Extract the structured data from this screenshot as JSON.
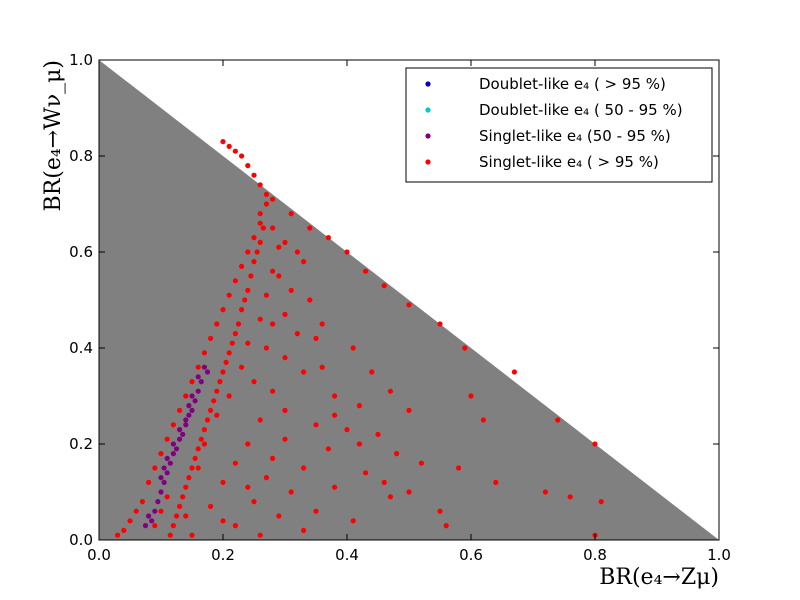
{
  "chart_data": {
    "type": "scatter",
    "xlabel": "BR(e₄→Zμ)",
    "ylabel": "BR(e₄→Wν_μ)",
    "xlim": [
      0.0,
      1.0
    ],
    "ylim": [
      0.0,
      1.0
    ],
    "x_ticks": [
      "0.0",
      "0.2",
      "0.4",
      "0.6",
      "0.8",
      "1.0"
    ],
    "y_ticks": [
      "0.0",
      "0.2",
      "0.4",
      "0.6",
      "0.8",
      "1.0"
    ],
    "grid": false,
    "legend_position": "top-right",
    "background_region": {
      "color": "#808080",
      "polygon": [
        [
          0.0,
          1.0
        ],
        [
          1.0,
          0.0
        ],
        [
          0.0,
          0.0
        ]
      ]
    },
    "series": [
      {
        "name": "Doublet-like e₄ (> 95 %)",
        "legend_name": "Doublet-like e₄ ( > 95 %)",
        "color": "#0000cc",
        "points": []
      },
      {
        "name": "Doublet-like e₄ ( 50 - 95 %)",
        "legend_name": "Doublet-like e₄ ( 50 - 95 %)",
        "color": "#00cccc",
        "points": []
      },
      {
        "name": "Singlet-like e₄ (50 - 95 %)",
        "legend_name": "Singlet-like e₄ (50 - 95 %)",
        "color": "#800080",
        "points": [
          [
            0.17,
            0.36
          ],
          [
            0.165,
            0.33
          ],
          [
            0.16,
            0.31
          ],
          [
            0.155,
            0.29
          ],
          [
            0.15,
            0.27
          ],
          [
            0.145,
            0.26
          ],
          [
            0.14,
            0.24
          ],
          [
            0.135,
            0.22
          ],
          [
            0.13,
            0.21
          ],
          [
            0.125,
            0.19
          ],
          [
            0.12,
            0.18
          ],
          [
            0.115,
            0.16
          ],
          [
            0.11,
            0.14
          ],
          [
            0.105,
            0.12
          ],
          [
            0.1,
            0.1
          ],
          [
            0.095,
            0.08
          ],
          [
            0.09,
            0.06
          ],
          [
            0.085,
            0.04
          ],
          [
            0.16,
            0.34
          ],
          [
            0.175,
            0.35
          ],
          [
            0.15,
            0.3
          ],
          [
            0.14,
            0.25
          ],
          [
            0.12,
            0.2
          ],
          [
            0.11,
            0.17
          ],
          [
            0.1,
            0.13
          ],
          [
            0.08,
            0.05
          ],
          [
            0.075,
            0.03
          ],
          [
            0.13,
            0.23
          ],
          [
            0.145,
            0.28
          ],
          [
            0.105,
            0.15
          ]
        ]
      },
      {
        "name": "Singlet-like e₄ (> 95 %)",
        "legend_name": "Singlet-like e₄ ( > 95 %)",
        "color": "#ff0000",
        "points": [
          [
            0.2,
            0.83
          ],
          [
            0.21,
            0.82
          ],
          [
            0.22,
            0.81
          ],
          [
            0.23,
            0.8
          ],
          [
            0.24,
            0.78
          ],
          [
            0.25,
            0.76
          ],
          [
            0.26,
            0.74
          ],
          [
            0.27,
            0.72
          ],
          [
            0.28,
            0.71
          ],
          [
            0.27,
            0.7
          ],
          [
            0.26,
            0.68
          ],
          [
            0.265,
            0.65
          ],
          [
            0.26,
            0.62
          ],
          [
            0.255,
            0.6
          ],
          [
            0.25,
            0.58
          ],
          [
            0.245,
            0.55
          ],
          [
            0.24,
            0.52
          ],
          [
            0.235,
            0.5
          ],
          [
            0.23,
            0.48
          ],
          [
            0.225,
            0.45
          ],
          [
            0.22,
            0.43
          ],
          [
            0.215,
            0.41
          ],
          [
            0.21,
            0.39
          ],
          [
            0.205,
            0.37
          ],
          [
            0.2,
            0.35
          ],
          [
            0.195,
            0.33
          ],
          [
            0.19,
            0.31
          ],
          [
            0.185,
            0.29
          ],
          [
            0.18,
            0.27
          ],
          [
            0.175,
            0.25
          ],
          [
            0.17,
            0.23
          ],
          [
            0.165,
            0.21
          ],
          [
            0.16,
            0.19
          ],
          [
            0.155,
            0.17
          ],
          [
            0.15,
            0.15
          ],
          [
            0.145,
            0.13
          ],
          [
            0.14,
            0.11
          ],
          [
            0.135,
            0.09
          ],
          [
            0.13,
            0.07
          ],
          [
            0.125,
            0.05
          ],
          [
            0.12,
            0.03
          ],
          [
            0.115,
            0.01
          ],
          [
            0.28,
            0.65
          ],
          [
            0.3,
            0.62
          ],
          [
            0.32,
            0.6
          ],
          [
            0.33,
            0.58
          ],
          [
            0.29,
            0.55
          ],
          [
            0.31,
            0.52
          ],
          [
            0.34,
            0.5
          ],
          [
            0.3,
            0.47
          ],
          [
            0.28,
            0.45
          ],
          [
            0.32,
            0.43
          ],
          [
            0.35,
            0.42
          ],
          [
            0.27,
            0.4
          ],
          [
            0.3,
            0.38
          ],
          [
            0.36,
            0.36
          ],
          [
            0.33,
            0.35
          ],
          [
            0.25,
            0.33
          ],
          [
            0.28,
            0.31
          ],
          [
            0.38,
            0.3
          ],
          [
            0.42,
            0.28
          ],
          [
            0.3,
            0.27
          ],
          [
            0.26,
            0.25
          ],
          [
            0.35,
            0.24
          ],
          [
            0.4,
            0.23
          ],
          [
            0.45,
            0.22
          ],
          [
            0.3,
            0.21
          ],
          [
            0.24,
            0.2
          ],
          [
            0.37,
            0.19
          ],
          [
            0.48,
            0.18
          ],
          [
            0.28,
            0.17
          ],
          [
            0.22,
            0.16
          ],
          [
            0.33,
            0.15
          ],
          [
            0.52,
            0.16
          ],
          [
            0.43,
            0.14
          ],
          [
            0.27,
            0.13
          ],
          [
            0.2,
            0.12
          ],
          [
            0.38,
            0.11
          ],
          [
            0.31,
            0.1
          ],
          [
            0.47,
            0.09
          ],
          [
            0.25,
            0.08
          ],
          [
            0.18,
            0.07
          ],
          [
            0.35,
            0.06
          ],
          [
            0.55,
            0.06
          ],
          [
            0.29,
            0.05
          ],
          [
            0.41,
            0.04
          ],
          [
            0.22,
            0.03
          ],
          [
            0.33,
            0.02
          ],
          [
            0.15,
            0.01
          ],
          [
            0.26,
            0.01
          ],
          [
            0.74,
            0.25
          ],
          [
            0.8,
            0.2
          ],
          [
            0.72,
            0.1
          ],
          [
            0.76,
            0.09
          ],
          [
            0.81,
            0.08
          ],
          [
            0.8,
            0.01
          ],
          [
            0.67,
            0.35
          ],
          [
            0.59,
            0.4
          ],
          [
            0.55,
            0.45
          ],
          [
            0.5,
            0.49
          ],
          [
            0.46,
            0.53
          ],
          [
            0.43,
            0.56
          ],
          [
            0.4,
            0.6
          ],
          [
            0.37,
            0.63
          ],
          [
            0.34,
            0.65
          ],
          [
            0.31,
            0.68
          ],
          [
            0.6,
            0.3
          ],
          [
            0.62,
            0.25
          ],
          [
            0.47,
            0.31
          ],
          [
            0.5,
            0.27
          ],
          [
            0.44,
            0.35
          ],
          [
            0.41,
            0.4
          ],
          [
            0.36,
            0.45
          ],
          [
            0.38,
            0.26
          ],
          [
            0.42,
            0.2
          ],
          [
            0.46,
            0.12
          ],
          [
            0.5,
            0.1
          ],
          [
            0.58,
            0.15
          ],
          [
            0.64,
            0.12
          ],
          [
            0.56,
            0.03
          ],
          [
            0.07,
            0.08
          ],
          [
            0.08,
            0.12
          ],
          [
            0.09,
            0.15
          ],
          [
            0.1,
            0.18
          ],
          [
            0.11,
            0.21
          ],
          [
            0.12,
            0.24
          ],
          [
            0.13,
            0.27
          ],
          [
            0.14,
            0.3
          ],
          [
            0.15,
            0.33
          ],
          [
            0.16,
            0.36
          ],
          [
            0.17,
            0.39
          ],
          [
            0.18,
            0.42
          ],
          [
            0.19,
            0.45
          ],
          [
            0.2,
            0.48
          ],
          [
            0.21,
            0.51
          ],
          [
            0.22,
            0.54
          ],
          [
            0.23,
            0.57
          ],
          [
            0.24,
            0.6
          ],
          [
            0.25,
            0.63
          ],
          [
            0.26,
            0.66
          ],
          [
            0.05,
            0.04
          ],
          [
            0.06,
            0.06
          ],
          [
            0.04,
            0.02
          ],
          [
            0.03,
            0.01
          ],
          [
            0.09,
            0.03
          ],
          [
            0.1,
            0.06
          ],
          [
            0.11,
            0.09
          ],
          [
            0.21,
            0.3
          ],
          [
            0.23,
            0.36
          ],
          [
            0.24,
            0.41
          ],
          [
            0.26,
            0.46
          ],
          [
            0.27,
            0.51
          ],
          [
            0.28,
            0.56
          ],
          [
            0.29,
            0.61
          ],
          [
            0.19,
            0.26
          ],
          [
            0.17,
            0.2
          ],
          [
            0.16,
            0.15
          ],
          [
            0.14,
            0.05
          ],
          [
            0.2,
            0.04
          ],
          [
            0.24,
            0.11
          ]
        ]
      }
    ]
  }
}
